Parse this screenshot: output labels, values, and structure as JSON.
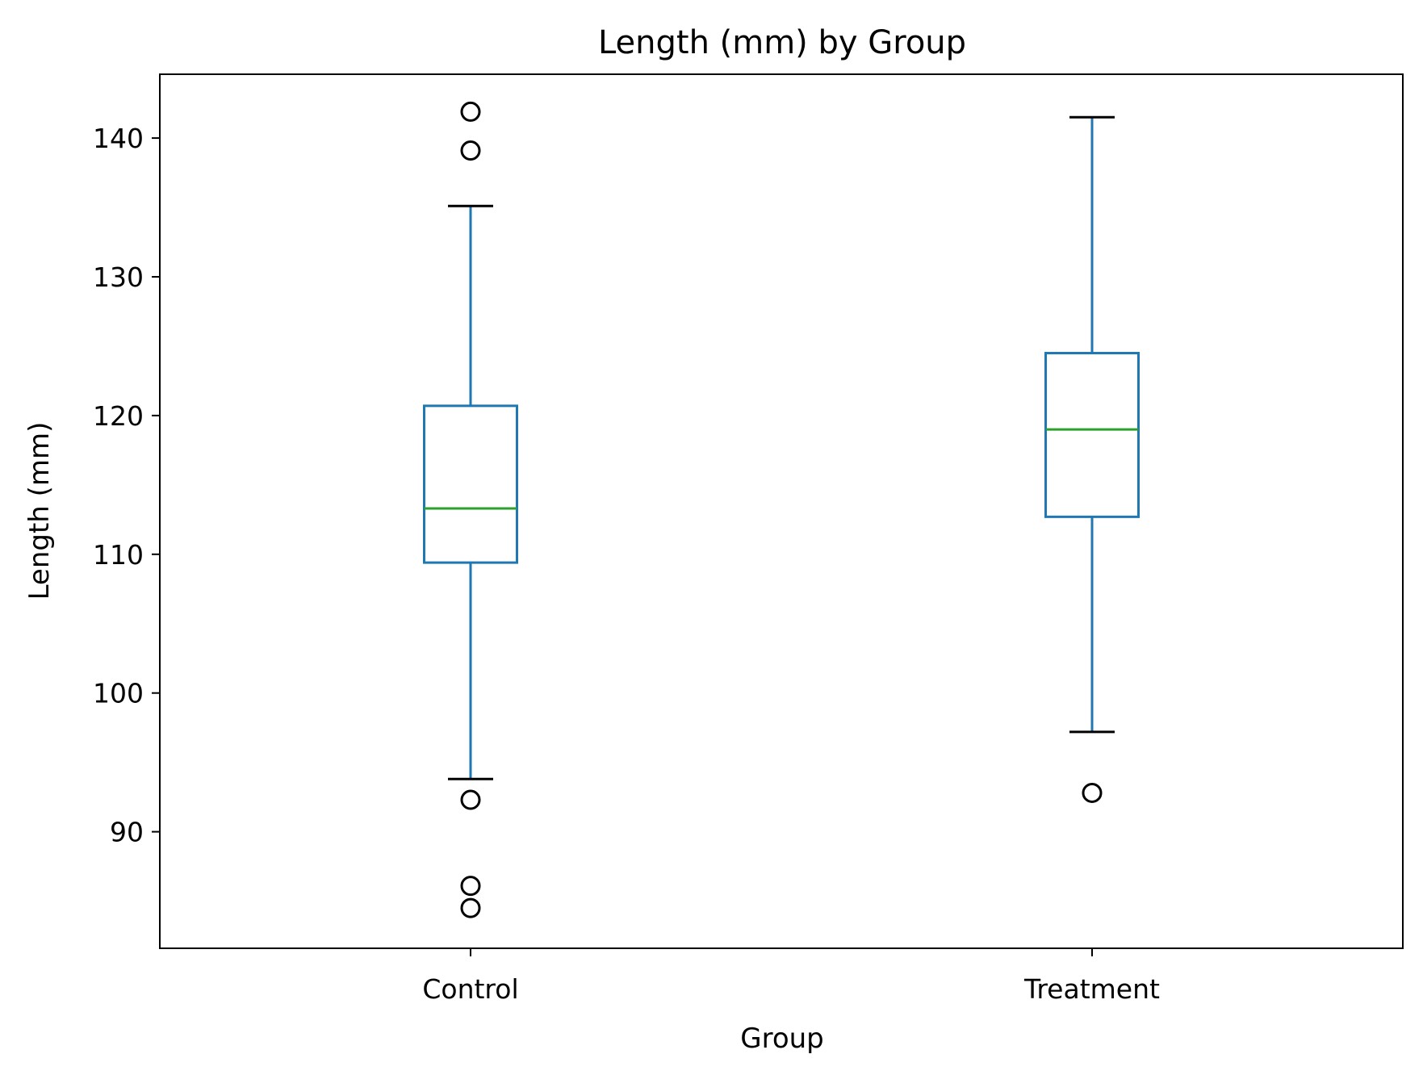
{
  "chart_data": {
    "type": "box",
    "title": "Length (mm) by Group",
    "xlabel": "Group",
    "ylabel": "Length (mm)",
    "ylim": [
      81.6,
      144.6
    ],
    "yticks": [
      90,
      100,
      110,
      120,
      130,
      140
    ],
    "grid": false,
    "categories": [
      "Control",
      "Treatment"
    ],
    "boxes": [
      {
        "category": "Control",
        "whisker_low": 93.8,
        "q1": 109.4,
        "median": 113.3,
        "q3": 120.7,
        "whisker_high": 135.1,
        "outliers": [
          141.9,
          139.1,
          92.3,
          86.1,
          84.5
        ]
      },
      {
        "category": "Treatment",
        "whisker_low": 97.2,
        "q1": 112.7,
        "median": 119.0,
        "q3": 124.5,
        "whisker_high": 141.5,
        "outliers": [
          92.8
        ]
      }
    ],
    "colors": {
      "box": "#1f77b4",
      "median": "#2ca02c",
      "cap": "#000000",
      "flier": "#000000"
    }
  }
}
